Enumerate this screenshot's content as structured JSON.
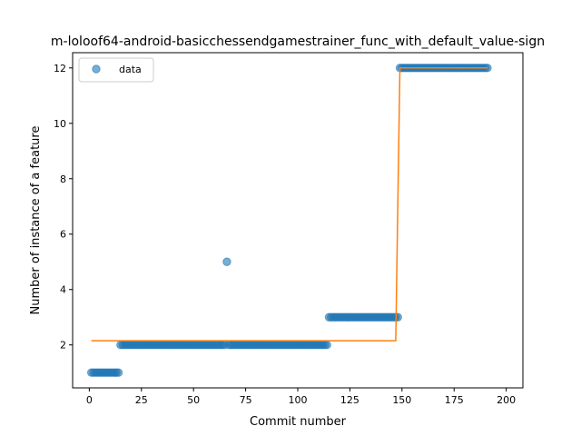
{
  "chart_data": {
    "type": "scatter",
    "title": "m-loloof64-android-basicchessendgamestrainer_func_with_default_value-sign",
    "xlabel": "Commit number",
    "ylabel": "Number of instance of a feature",
    "xlim": [
      -8,
      208
    ],
    "ylim": [
      0.45,
      12.55
    ],
    "xticks": [
      0,
      25,
      50,
      75,
      100,
      125,
      150,
      175,
      200
    ],
    "yticks": [
      2,
      4,
      6,
      8,
      10,
      12
    ],
    "grid": false,
    "legend": {
      "placement": "top-left",
      "entries": [
        "data"
      ]
    },
    "colors": {
      "points": "#1f77b4",
      "fit": "#ff7f0e"
    },
    "series": [
      {
        "name": "data",
        "kind": "points",
        "segments": [
          {
            "x_from": 1,
            "x_to": 14,
            "y": 1
          },
          {
            "x_from": 15,
            "x_to": 65,
            "y": 2
          },
          {
            "x_from": 66,
            "x_to": 66,
            "y": 5
          },
          {
            "x_from": 67,
            "x_to": 114,
            "y": 2
          },
          {
            "x_from": 115,
            "x_to": 148,
            "y": 3
          },
          {
            "x_from": 149,
            "x_to": 191,
            "y": 12
          }
        ]
      },
      {
        "kind": "line",
        "x": [
          1,
          147,
          149,
          191
        ],
        "y": [
          2.15,
          2.15,
          12.0,
          12.0
        ]
      }
    ]
  }
}
